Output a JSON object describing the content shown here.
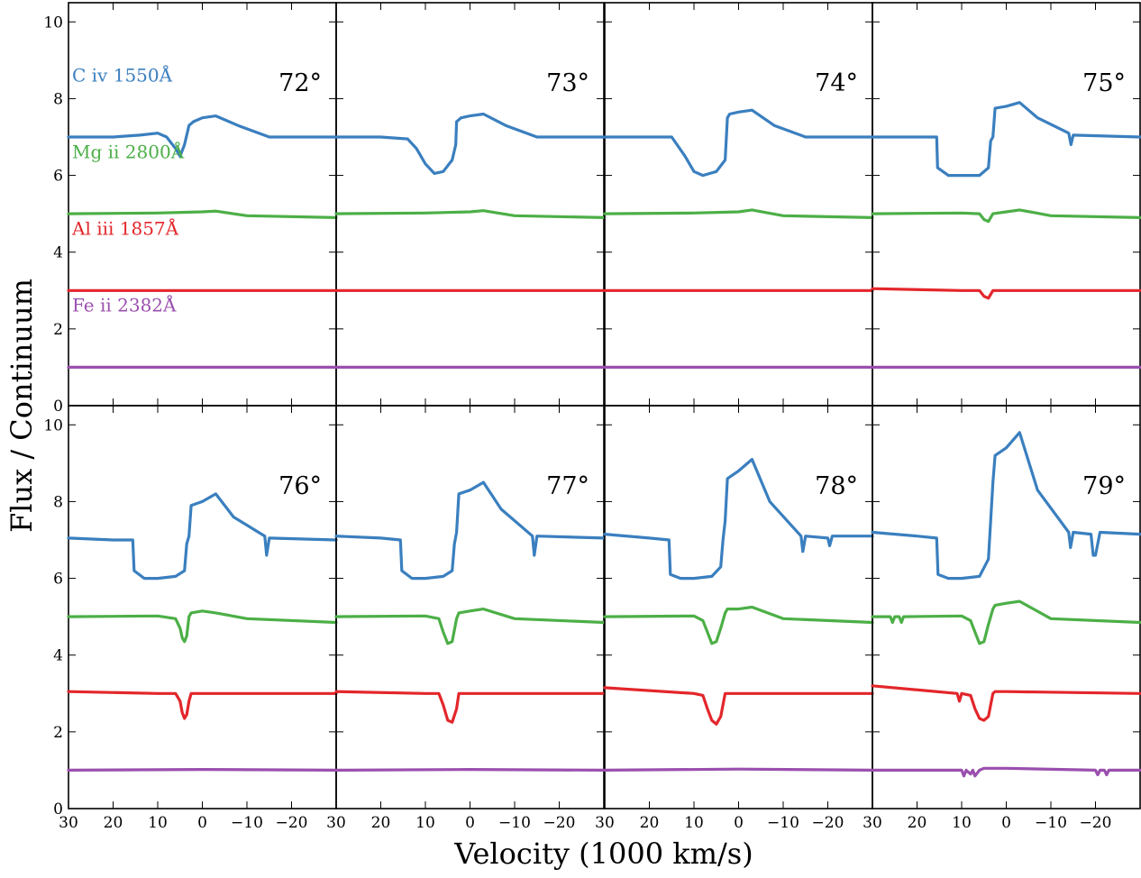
{
  "chart_data": {
    "type": "line",
    "xlabel": "Velocity (1000 km/s)",
    "ylabel": "Flux / Continuum",
    "xlim": [
      30,
      -30
    ],
    "ylim": [
      0,
      10.5
    ],
    "x_ticks": [
      30,
      20,
      10,
      0,
      -10,
      -20
    ],
    "x_tick_labels": [
      "30",
      "20",
      "10",
      "0",
      "−10",
      "−20"
    ],
    "y_ticks": [
      0,
      2,
      4,
      6,
      8,
      10
    ],
    "y_tick_labels": [
      "0",
      "2",
      "4",
      "6",
      "8",
      "10"
    ],
    "grid": false,
    "series_labels": [
      {
        "text": "C iv 1550Å",
        "color": "#3a7fbf",
        "key": "civ"
      },
      {
        "text": "Mg ii 2800Å",
        "color": "#4caf47",
        "key": "mgii"
      },
      {
        "text": "Al iii 1857Å",
        "color": "#e3262b",
        "key": "aliii"
      },
      {
        "text": "Fe ii 2382Å",
        "color": "#9a4fae",
        "key": "feii"
      }
    ],
    "panels": [
      {
        "label": "72°",
        "series": {
          "civ": {
            "x": [
              30,
              20,
              14,
              10,
              8,
              6,
              5,
              4,
              3,
              2,
              0,
              -3,
              -8,
              -15,
              -30
            ],
            "y": [
              7.0,
              7.0,
              7.05,
              7.1,
              7.0,
              6.7,
              6.5,
              6.8,
              7.3,
              7.4,
              7.5,
              7.55,
              7.3,
              7.0,
              7.0
            ]
          },
          "mgii": {
            "x": [
              30,
              10,
              0,
              -3,
              -10,
              -30
            ],
            "y": [
              5.0,
              5.02,
              5.05,
              5.07,
              4.95,
              4.9
            ]
          },
          "aliii": {
            "x": [
              30,
              -30
            ],
            "y": [
              3.0,
              3.0
            ]
          },
          "feii": {
            "x": [
              30,
              -30
            ],
            "y": [
              1.0,
              1.0
            ]
          }
        }
      },
      {
        "label": "73°",
        "series": {
          "civ": {
            "x": [
              30,
              20,
              14,
              12,
              10,
              8,
              6,
              4,
              3.2,
              3,
              2,
              0,
              -3,
              -8,
              -15,
              -30
            ],
            "y": [
              7.0,
              7.0,
              6.95,
              6.7,
              6.3,
              6.05,
              6.1,
              6.4,
              6.8,
              7.4,
              7.5,
              7.55,
              7.6,
              7.3,
              7.0,
              7.0
            ]
          },
          "mgii": {
            "x": [
              30,
              10,
              0,
              -3,
              -10,
              -30
            ],
            "y": [
              5.0,
              5.02,
              5.05,
              5.08,
              4.95,
              4.9
            ]
          },
          "aliii": {
            "x": [
              30,
              -30
            ],
            "y": [
              3.0,
              3.0
            ]
          },
          "feii": {
            "x": [
              30,
              -30
            ],
            "y": [
              1.0,
              1.0
            ]
          }
        }
      },
      {
        "label": "74°",
        "series": {
          "civ": {
            "x": [
              30,
              20,
              15,
              12,
              10,
              8,
              5,
              3,
              2.5,
              2,
              0,
              -3,
              -8,
              -15,
              -30
            ],
            "y": [
              7.0,
              7.0,
              7.0,
              6.5,
              6.1,
              6.0,
              6.1,
              6.4,
              7.5,
              7.6,
              7.65,
              7.7,
              7.3,
              7.0,
              7.0
            ]
          },
          "mgii": {
            "x": [
              30,
              10,
              0,
              -3,
              -10,
              -30
            ],
            "y": [
              5.0,
              5.02,
              5.05,
              5.1,
              4.95,
              4.9
            ]
          },
          "aliii": {
            "x": [
              30,
              -30
            ],
            "y": [
              3.0,
              3.0
            ]
          },
          "feii": {
            "x": [
              30,
              -30
            ],
            "y": [
              1.0,
              1.0
            ]
          }
        }
      },
      {
        "label": "75°",
        "series": {
          "civ": {
            "x": [
              30,
              20,
              15.6,
              15.4,
              13,
              10,
              6,
              4,
              3.5,
              3,
              2.5,
              0,
              -3,
              -7,
              -14,
              -14.5,
              -15,
              -30
            ],
            "y": [
              7.0,
              7.0,
              7.0,
              6.2,
              6.0,
              6.0,
              6.0,
              6.2,
              6.9,
              7.0,
              7.75,
              7.8,
              7.9,
              7.5,
              7.1,
              6.8,
              7.05,
              7.0
            ]
          },
          "mgii": {
            "x": [
              30,
              10,
              6,
              5,
              4,
              3,
              0,
              -3,
              -10,
              -30
            ],
            "y": [
              5.0,
              5.02,
              5.0,
              4.85,
              4.8,
              5.0,
              5.05,
              5.1,
              4.95,
              4.9
            ]
          },
          "aliii": {
            "x": [
              30,
              10,
              6,
              5,
              4,
              3,
              0,
              -30
            ],
            "y": [
              3.05,
              3.0,
              3.0,
              2.85,
              2.8,
              3.0,
              3.0,
              3.0
            ]
          },
          "feii": {
            "x": [
              30,
              -30
            ],
            "y": [
              1.0,
              1.0
            ]
          }
        }
      },
      {
        "label": "76°",
        "series": {
          "civ": {
            "x": [
              30,
              20,
              15.6,
              15.3,
              13,
              10,
              6,
              4,
              3.5,
              3,
              2.5,
              0,
              -3,
              -7,
              -14,
              -14.4,
              -15,
              -30
            ],
            "y": [
              7.05,
              7.0,
              7.0,
              6.2,
              6.0,
              6.0,
              6.05,
              6.2,
              6.9,
              7.1,
              7.9,
              8.0,
              8.2,
              7.6,
              7.1,
              6.6,
              7.05,
              7.0
            ]
          },
          "mgii": {
            "x": [
              30,
              10,
              6,
              5,
              4.5,
              4,
              3.5,
              3,
              2.5,
              0,
              -3,
              -10,
              -30
            ],
            "y": [
              5.0,
              5.02,
              4.95,
              4.7,
              4.45,
              4.35,
              4.5,
              5.0,
              5.1,
              5.15,
              5.1,
              4.95,
              4.85
            ]
          },
          "aliii": {
            "x": [
              30,
              10,
              6,
              5,
              4.5,
              4,
              3.5,
              3,
              2.5,
              0,
              -30
            ],
            "y": [
              3.05,
              3.0,
              3.0,
              2.8,
              2.5,
              2.35,
              2.45,
              2.8,
              3.0,
              3.0,
              3.0
            ]
          },
          "feii": {
            "x": [
              30,
              0,
              -30
            ],
            "y": [
              1.0,
              1.02,
              1.0
            ]
          }
        }
      },
      {
        "label": "77°",
        "series": {
          "civ": {
            "x": [
              30,
              20,
              15.6,
              15.3,
              13,
              10,
              6,
              4,
              3.5,
              3,
              2.5,
              0,
              -3,
              -7,
              -14,
              -14.4,
              -15,
              -30
            ],
            "y": [
              7.1,
              7.05,
              7.0,
              6.2,
              6.0,
              6.0,
              6.05,
              6.2,
              6.9,
              7.2,
              8.2,
              8.3,
              8.5,
              7.8,
              7.1,
              6.6,
              7.1,
              7.05
            ]
          },
          "mgii": {
            "x": [
              30,
              10,
              7,
              6,
              5,
              4,
              3,
              2.5,
              0,
              -3,
              -10,
              -30
            ],
            "y": [
              5.0,
              5.02,
              4.95,
              4.6,
              4.3,
              4.35,
              4.95,
              5.1,
              5.15,
              5.2,
              4.95,
              4.85
            ]
          },
          "aliii": {
            "x": [
              30,
              10,
              7,
              6,
              5,
              4,
              3,
              2.5,
              0,
              -30
            ],
            "y": [
              3.05,
              3.0,
              3.0,
              2.7,
              2.3,
              2.25,
              2.6,
              3.0,
              3.0,
              3.0
            ]
          },
          "feii": {
            "x": [
              30,
              0,
              -30
            ],
            "y": [
              1.0,
              1.02,
              1.0
            ]
          }
        }
      },
      {
        "label": "78°",
        "series": {
          "civ": {
            "x": [
              30,
              20,
              15.6,
              15.3,
              13,
              10,
              6,
              4,
              3.5,
              3,
              2.5,
              0,
              -3,
              -7,
              -14,
              -14.4,
              -15,
              -20,
              -20.4,
              -21,
              -30
            ],
            "y": [
              7.15,
              7.05,
              7.0,
              6.1,
              6.0,
              6.0,
              6.05,
              6.3,
              7.0,
              7.5,
              8.6,
              8.8,
              9.1,
              8.0,
              7.1,
              6.7,
              7.1,
              7.05,
              6.85,
              7.1,
              7.1
            ]
          },
          "mgii": {
            "x": [
              30,
              10,
              8,
              7,
              6,
              5,
              4,
              3,
              2.5,
              0,
              -3,
              -10,
              -30
            ],
            "y": [
              5.0,
              5.02,
              4.9,
              4.6,
              4.3,
              4.35,
              4.7,
              5.1,
              5.2,
              5.2,
              5.25,
              4.95,
              4.85
            ]
          },
          "aliii": {
            "x": [
              30,
              10,
              8,
              7,
              6,
              5,
              4,
              3,
              2.5,
              0,
              -30
            ],
            "y": [
              3.15,
              3.0,
              2.95,
              2.6,
              2.3,
              2.2,
              2.4,
              3.0,
              3.0,
              3.0,
              3.0
            ]
          },
          "feii": {
            "x": [
              30,
              0,
              -30
            ],
            "y": [
              1.0,
              1.03,
              1.0
            ]
          }
        }
      },
      {
        "label": "79°",
        "series": {
          "civ": {
            "x": [
              30,
              20,
              15.6,
              15.3,
              13,
              10,
              6,
              4,
              3.5,
              3,
              2.5,
              0,
              -3,
              -7,
              -14,
              -14.4,
              -15,
              -19,
              -19.5,
              -20,
              -21,
              -30
            ],
            "y": [
              7.2,
              7.1,
              7.05,
              6.1,
              6.0,
              6.0,
              6.05,
              6.5,
              7.5,
              8.5,
              9.2,
              9.4,
              9.8,
              8.3,
              7.2,
              6.8,
              7.2,
              7.15,
              6.6,
              6.6,
              7.2,
              7.15
            ]
          },
          "mgii": {
            "x": [
              30,
              26,
              25.5,
              25,
              24,
              23.5,
              23,
              10,
              8,
              7,
              6,
              5,
              4,
              3,
              2.5,
              0,
              -3,
              -10,
              -30
            ],
            "y": [
              5.0,
              5.0,
              4.85,
              5.0,
              5.0,
              4.85,
              5.0,
              5.02,
              4.9,
              4.6,
              4.3,
              4.35,
              4.8,
              5.2,
              5.3,
              5.35,
              5.4,
              4.95,
              4.85
            ]
          },
          "aliii": {
            "x": [
              30,
              11,
              10.5,
              10,
              8,
              7,
              6,
              5,
              4,
              3,
              2.5,
              0,
              -30
            ],
            "y": [
              3.2,
              3.0,
              2.8,
              3.0,
              2.95,
              2.6,
              2.35,
              2.3,
              2.4,
              3.0,
              3.05,
              3.05,
              3.0
            ]
          },
          "feii": {
            "x": [
              30,
              10,
              9.5,
              9,
              8,
              7.5,
              7,
              6,
              5,
              0,
              -20,
              -20.5,
              -21,
              -22,
              -22.5,
              -23,
              -30
            ],
            "y": [
              1.0,
              1.0,
              0.85,
              1.0,
              0.9,
              1.0,
              0.85,
              1.0,
              1.05,
              1.05,
              1.0,
              0.88,
              1.0,
              1.0,
              0.88,
              1.0,
              1.0
            ]
          }
        }
      }
    ]
  }
}
